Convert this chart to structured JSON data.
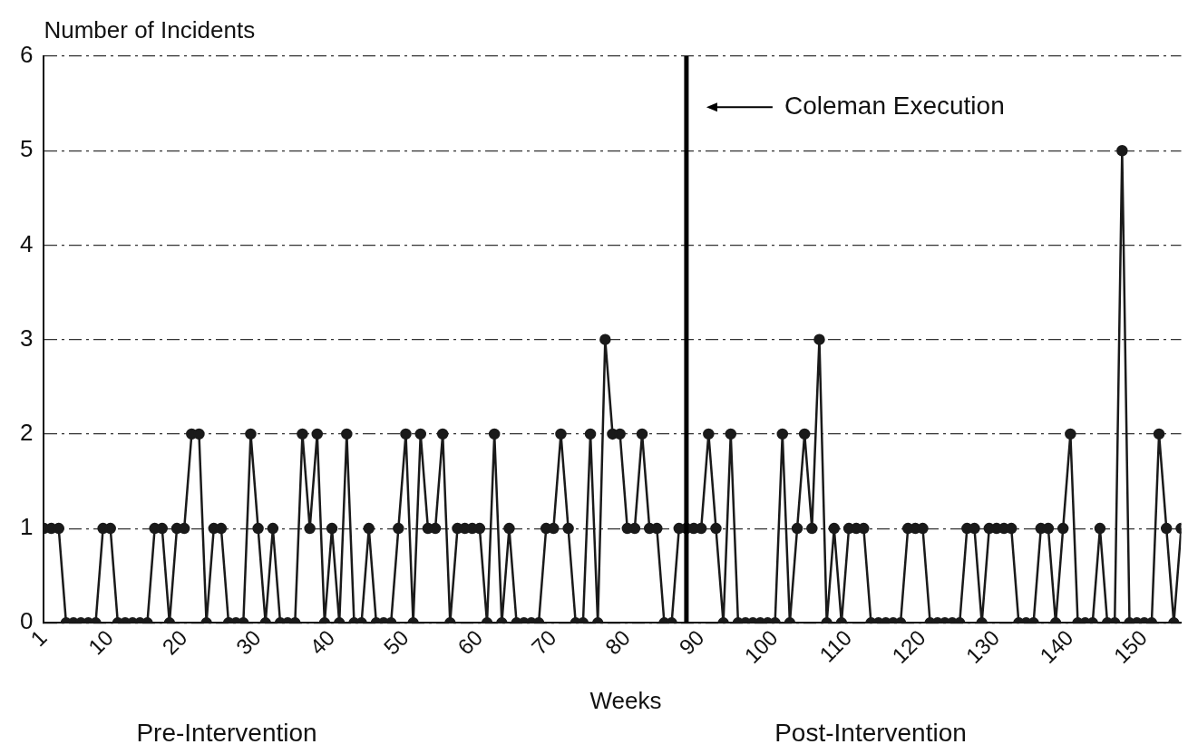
{
  "chart_data": {
    "type": "line",
    "xlabel": "Weeks",
    "ylabel": "Number of Incidents",
    "x": [
      1,
      2,
      3,
      4,
      5,
      6,
      7,
      8,
      9,
      10,
      11,
      12,
      13,
      14,
      15,
      16,
      17,
      18,
      19,
      20,
      21,
      22,
      23,
      24,
      25,
      26,
      27,
      28,
      29,
      30,
      31,
      32,
      33,
      34,
      35,
      36,
      37,
      38,
      39,
      40,
      41,
      42,
      43,
      44,
      45,
      46,
      47,
      48,
      49,
      50,
      51,
      52,
      53,
      54,
      55,
      56,
      57,
      58,
      59,
      60,
      61,
      62,
      63,
      64,
      65,
      66,
      67,
      68,
      69,
      70,
      71,
      72,
      73,
      74,
      75,
      76,
      77,
      78,
      79,
      80,
      81,
      82,
      83,
      84,
      85,
      86,
      87,
      88,
      89,
      90,
      91,
      92,
      93,
      94,
      95,
      96,
      97,
      98,
      99,
      100,
      101,
      102,
      103,
      104,
      105,
      106,
      107,
      108,
      109,
      110,
      111,
      112,
      113,
      114,
      115,
      116,
      117,
      118,
      119,
      120,
      121,
      122,
      123,
      124,
      125,
      126,
      127,
      128,
      129,
      130,
      131,
      132,
      133,
      134,
      135,
      136,
      137,
      138,
      139,
      140,
      141,
      142,
      143,
      144,
      145,
      146,
      147,
      148,
      149,
      150,
      151,
      152,
      153,
      154,
      155
    ],
    "series": [
      {
        "color": "#1a1a1a",
        "values": [
          1,
          1,
          1,
          0,
          0,
          0,
          0,
          0,
          1,
          1,
          0,
          0,
          0,
          0,
          0,
          1,
          1,
          0,
          1,
          1,
          2,
          2,
          0,
          1,
          1,
          0,
          0,
          0,
          2,
          1,
          0,
          1,
          0,
          0,
          0,
          2,
          1,
          2,
          0,
          1,
          0,
          2,
          0,
          0,
          1,
          0,
          0,
          0,
          1,
          2,
          0,
          2,
          1,
          1,
          2,
          0,
          1,
          1,
          1,
          1,
          0,
          2,
          0,
          1,
          0,
          0,
          0,
          0,
          1,
          1,
          2,
          1,
          0,
          0,
          2,
          0,
          3,
          2,
          2,
          1,
          1,
          2,
          1,
          1,
          0,
          0,
          1,
          1,
          1,
          1,
          2,
          1,
          0,
          2,
          0,
          0,
          0,
          0,
          0,
          0,
          2,
          0,
          1,
          2,
          1,
          3,
          0,
          1,
          0,
          1,
          1,
          1,
          0,
          0,
          0,
          0,
          0,
          1,
          1,
          1,
          0,
          0,
          0,
          0,
          0,
          1,
          1,
          0,
          1,
          1,
          1,
          1,
          0,
          0,
          0,
          1,
          1,
          0,
          1,
          2,
          0,
          0,
          0,
          1,
          0,
          0,
          5,
          0,
          0,
          0,
          0,
          2,
          1,
          0,
          1
        ]
      }
    ],
    "xlim": [
      1,
      155
    ],
    "xticks": [
      1,
      10,
      20,
      30,
      40,
      50,
      60,
      70,
      80,
      90,
      100,
      110,
      120,
      130,
      140,
      150
    ],
    "ylim": [
      0,
      6
    ],
    "yticks": [
      0,
      1,
      2,
      3,
      4,
      5,
      6
    ],
    "grid": "y",
    "legend": false,
    "marker": "circle",
    "line_style": "solid",
    "ref_lines": [
      {
        "axis": "x",
        "value": 88,
        "label": "Coleman Execution",
        "color": "#000000"
      }
    ],
    "annotations": [
      "Pre-Intervention",
      "Post-Intervention"
    ]
  }
}
